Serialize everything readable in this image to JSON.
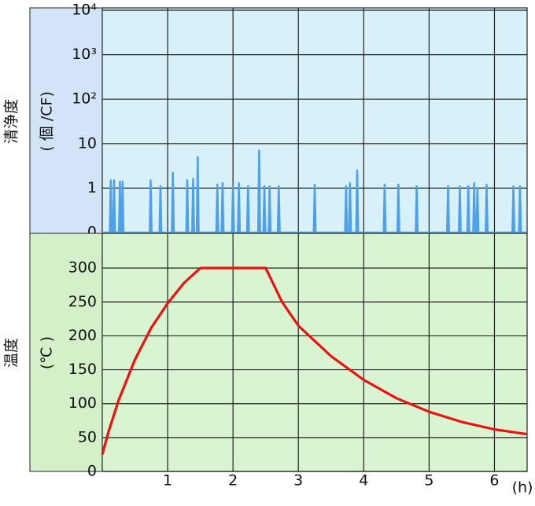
{
  "chart_data": [
    {
      "type": "line",
      "ylabel": "清浄度",
      "yunit": "( 個 /CF)",
      "log_scale": true,
      "grid": true,
      "background": "#d8f0f8",
      "label_background": "#d4e4f8",
      "xlim": [
        0,
        6.5
      ],
      "xticks": [
        1,
        2,
        3,
        4,
        5,
        6
      ],
      "ylim": [
        0,
        10000
      ],
      "yticks": [
        0,
        1,
        10,
        {
          "value": 100,
          "label": "10²"
        },
        {
          "value": 1000,
          "label": "10³"
        },
        {
          "value": 10000,
          "label": "10⁴"
        }
      ],
      "x": [
        0,
        0.115,
        0.13,
        0.145,
        0.165,
        0.18,
        0.195,
        0.255,
        0.27,
        0.285,
        0.295,
        0.31,
        0.325,
        0.725,
        0.74,
        0.755,
        0.875,
        0.89,
        0.905,
        1.065,
        1.08,
        1.095,
        1.285,
        1.3,
        1.315,
        1.375,
        1.39,
        1.405,
        1.445,
        1.46,
        1.475,
        1.745,
        1.76,
        1.775,
        1.825,
        1.84,
        1.855,
        1.985,
        2.0,
        2.015,
        2.075,
        2.09,
        2.105,
        2.215,
        2.23,
        2.245,
        2.385,
        2.4,
        2.415,
        2.465,
        2.48,
        2.495,
        2.545,
        2.56,
        2.575,
        2.685,
        2.7,
        2.715,
        3.235,
        3.25,
        3.265,
        3.715,
        3.73,
        3.745,
        3.775,
        3.79,
        3.805,
        3.885,
        3.9,
        3.915,
        4.305,
        4.32,
        4.335,
        4.515,
        4.53,
        4.545,
        4.795,
        4.81,
        4.825,
        5.275,
        5.29,
        5.305,
        5.455,
        5.47,
        5.485,
        5.585,
        5.6,
        5.615,
        5.675,
        5.69,
        5.705,
        5.725,
        5.74,
        5.755,
        5.865,
        5.88,
        5.895,
        6.275,
        6.29,
        6.305,
        6.375,
        6.39,
        6.405,
        6.5
      ],
      "series": [
        {
          "color": "#4ea0e8",
          "values": [
            0,
            0,
            1.5,
            0,
            0,
            1.5,
            0,
            0,
            1.4,
            0,
            0,
            1.4,
            0,
            0,
            1.5,
            0,
            0,
            1.1,
            0,
            0,
            2.2,
            0,
            0,
            1.5,
            0,
            0,
            1.6,
            0,
            0,
            5,
            0,
            0,
            1.2,
            0,
            0,
            1.3,
            0,
            0,
            1.1,
            0,
            0,
            1.3,
            0,
            0,
            1.1,
            0,
            0,
            7,
            0,
            0,
            1.1,
            0,
            0,
            1.1,
            0,
            0,
            1.1,
            0,
            0,
            1.2,
            0,
            0,
            1.1,
            0,
            0,
            1.3,
            0,
            0,
            2.5,
            0,
            0,
            1.2,
            0,
            0,
            1.2,
            0,
            0,
            1.1,
            0,
            0,
            1.1,
            0,
            0,
            1.1,
            0,
            0,
            1.1,
            0,
            0,
            1.3,
            0,
            0,
            1,
            0,
            0,
            1.2,
            0,
            0,
            1.1,
            0,
            0,
            1.1,
            0,
            0
          ]
        }
      ]
    },
    {
      "type": "line",
      "ylabel": "温度",
      "yunit": "(℃ )",
      "xlabel": "(h)",
      "grid": true,
      "background": "#d8f4d0",
      "label_background": "#d4f0c8",
      "xlim": [
        0,
        6.5
      ],
      "xticks": [
        1,
        2,
        3,
        4,
        5,
        6
      ],
      "ylim": [
        0,
        350
      ],
      "yticks": [
        0,
        50,
        100,
        150,
        200,
        250,
        300
      ],
      "x": [
        0,
        0.1,
        0.25,
        0.5,
        0.75,
        1,
        1.25,
        1.5,
        2.5,
        2.75,
        3,
        3.5,
        4,
        4.5,
        5,
        5.5,
        6,
        6.5
      ],
      "series": [
        {
          "color": "#ee1111",
          "values": [
            25,
            60,
            105,
            165,
            212,
            248,
            278,
            300,
            300,
            250,
            215,
            170,
            135,
            108,
            88,
            73,
            62,
            55
          ]
        }
      ]
    }
  ]
}
